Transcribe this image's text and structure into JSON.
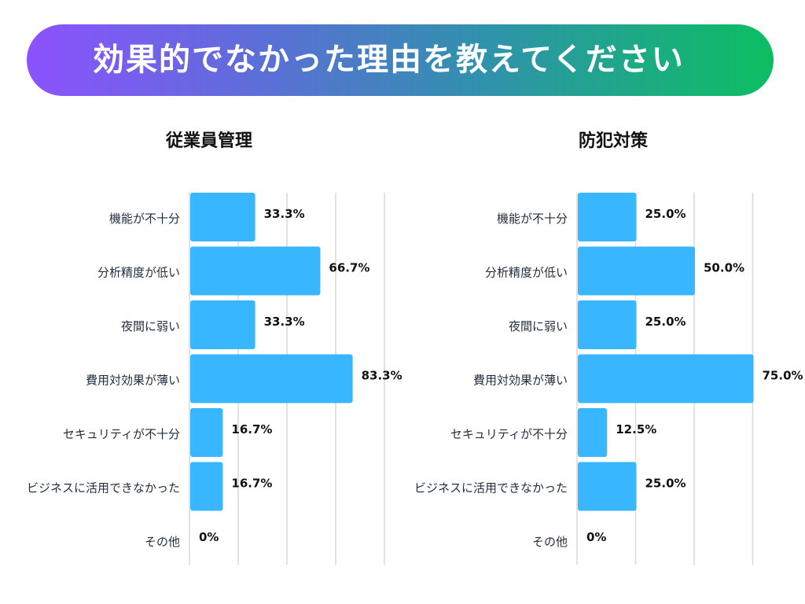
{
  "banner": {
    "title": "効果的でなかった理由を教えてください"
  },
  "colors": {
    "bar": "#38b6ff",
    "gradient_start": "#8c52ff",
    "gradient_end": "#0cbe62"
  },
  "chart_data": [
    {
      "type": "bar",
      "orientation": "horizontal",
      "title": "従業員管理",
      "categories": [
        "機能が不十分",
        "分析精度が低い",
        "夜間に弱い",
        "費用対効果が薄い",
        "セキュリティが不十分",
        "ビジネスに活用できなかった",
        "その他"
      ],
      "values": [
        33.3,
        66.7,
        33.3,
        83.3,
        16.7,
        16.7,
        0
      ],
      "value_labels": [
        "33.3%",
        "66.7%",
        "33.3%",
        "83.3%",
        "16.7%",
        "16.7%",
        "0%"
      ],
      "xlim": [
        0,
        100
      ],
      "xlabel": "",
      "ylabel": "",
      "grid": true
    },
    {
      "type": "bar",
      "orientation": "horizontal",
      "title": "防犯対策",
      "categories": [
        "機能が不十分",
        "分析精度が低い",
        "夜間に弱い",
        "費用対効果が薄い",
        "セキュリティが不十分",
        "ビジネスに活用できなかった",
        "その他"
      ],
      "values": [
        25.0,
        50.0,
        25.0,
        75.0,
        12.5,
        25.0,
        0
      ],
      "value_labels": [
        "25.0%",
        "50.0%",
        "25.0%",
        "75.0%",
        "12.5%",
        "25.0%",
        "0%"
      ],
      "xlim": [
        0,
        100
      ],
      "xlabel": "",
      "ylabel": "",
      "grid": true
    }
  ]
}
